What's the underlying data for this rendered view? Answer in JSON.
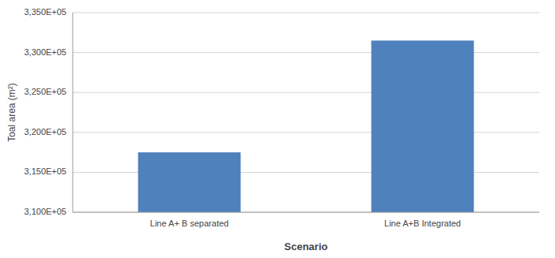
{
  "chart_data": {
    "type": "bar",
    "categories": [
      "Line A+ B separated",
      "Line A+B Integrated"
    ],
    "values": [
      317500,
      331500
    ],
    "color": "#4F81BD",
    "xlabel": "Scenario",
    "ylabel": "Toal area (m²)",
    "ylim": [
      310000,
      335000
    ],
    "yticks": [
      {
        "value": 310000,
        "label": "3,100E+05"
      },
      {
        "value": 315000,
        "label": "3,150E+05"
      },
      {
        "value": 320000,
        "label": "3,200E+05"
      },
      {
        "value": 325000,
        "label": "3,250E+05"
      },
      {
        "value": 330000,
        "label": "3,300E+05"
      },
      {
        "value": 335000,
        "label": "3,350E+05"
      }
    ],
    "grid": true
  }
}
